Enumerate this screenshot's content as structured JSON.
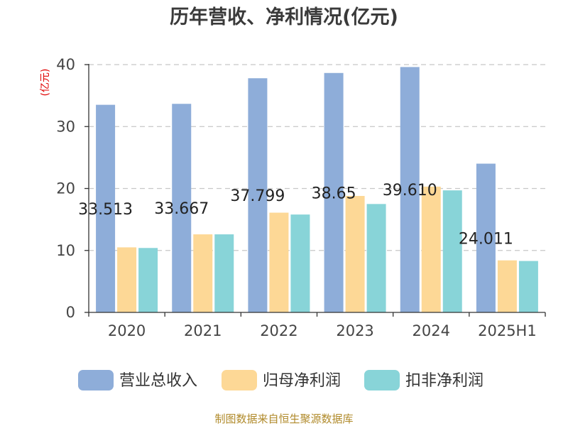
{
  "chart_data": {
    "type": "bar",
    "title": "历年营收、净利情况(亿元)",
    "ylabel": "(亿元)",
    "categories": [
      "2020",
      "2021",
      "2022",
      "2023",
      "2024",
      "2025H1"
    ],
    "ylim": [
      0,
      40
    ],
    "yticks": [
      0,
      10,
      20,
      30,
      40
    ],
    "grid": true,
    "legend_position": "bottom",
    "series": [
      {
        "name": "营业总收入",
        "color": "#8eadd9",
        "values": [
          33.513,
          33.667,
          37.799,
          38.65,
          39.61,
          24.011
        ],
        "labels": [
          "33.513",
          "33.667",
          "37.799",
          "38.65",
          "39.610",
          "24.011"
        ]
      },
      {
        "name": "归母净利润",
        "color": "#fdd896",
        "values": [
          10.5,
          12.6,
          16.1,
          18.8,
          20.3,
          8.4
        ]
      },
      {
        "name": "扣非净利润",
        "color": "#88d4d8",
        "values": [
          10.4,
          12.6,
          15.8,
          17.5,
          19.7,
          8.3
        ]
      }
    ]
  },
  "source": "制图数据来自恒生聚源数据库"
}
